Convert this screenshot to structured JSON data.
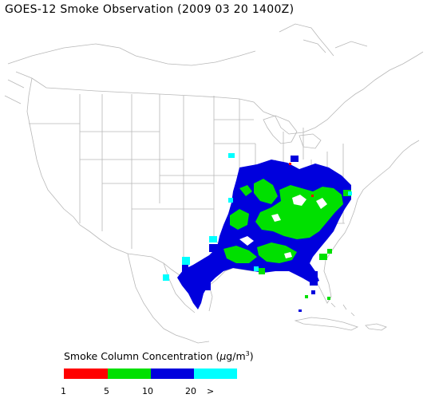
{
  "title": "GOES-12 Smoke Observation (2009 03 20  1400Z)",
  "legend": {
    "title_prefix": "Smoke Column Concentration (",
    "unit_mu": "μ",
    "unit_rest": "g/m",
    "unit_sup": "3",
    "title_suffix": ")",
    "colors": [
      "#ff0000",
      "#00e000",
      "#0000dd",
      "#00ffff"
    ],
    "ticks": [
      "1",
      "5",
      "10",
      "20",
      ">"
    ]
  }
}
